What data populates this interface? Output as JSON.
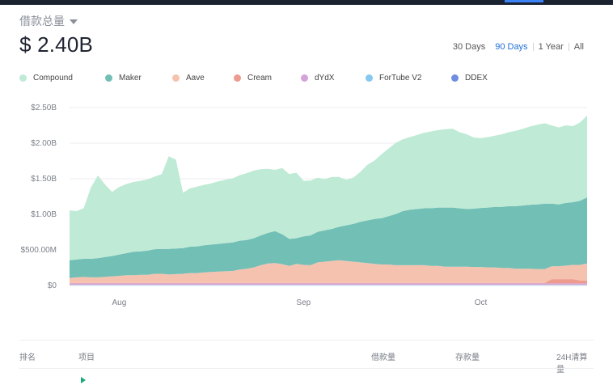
{
  "header": {
    "title": "借款总量",
    "total": "$ 2.40B"
  },
  "range_tabs": [
    {
      "label": "30 Days",
      "active": false
    },
    {
      "label": "90 Days",
      "active": true
    },
    {
      "label": "1 Year",
      "active": false
    },
    {
      "label": "All",
      "active": false
    }
  ],
  "legend": [
    {
      "name": "Compound",
      "color": "#bfead5"
    },
    {
      "name": "Maker",
      "color": "#72bfb6"
    },
    {
      "name": "Aave",
      "color": "#f6c2b0"
    },
    {
      "name": "Cream",
      "color": "#ec9b8e"
    },
    {
      "name": "dYdX",
      "color": "#d4a3d9"
    },
    {
      "name": "ForTube V2",
      "color": "#86c8ee"
    },
    {
      "name": "DDEX",
      "color": "#6f8ee0"
    }
  ],
  "chart_data": {
    "type": "area",
    "stacked": true,
    "ylim": [
      0,
      2500
    ],
    "y_unit": "M",
    "y_tick_labels": [
      "$0",
      "$500.00M",
      "$1.00B",
      "$1.50B",
      "$2.00B",
      "$2.50B"
    ],
    "y_tick_values": [
      0,
      500,
      1000,
      1500,
      2000,
      2500
    ],
    "x_tick_labels": [
      "Aug",
      "Sep",
      "Oct"
    ],
    "x_tick_index": [
      7,
      33,
      58
    ],
    "grid": true,
    "series": [
      {
        "name": "DDEX",
        "values": [
          5,
          5,
          5,
          5,
          5,
          5,
          5,
          5,
          5,
          5,
          5,
          5,
          5,
          5,
          5,
          5,
          5,
          5,
          5,
          5,
          5,
          5,
          5,
          5,
          5,
          5,
          5,
          5,
          5,
          5,
          5,
          5,
          5,
          5,
          5,
          5,
          5,
          5,
          5,
          5,
          5,
          5,
          5,
          5,
          5,
          5,
          5,
          5,
          5,
          5,
          5,
          5,
          5,
          5,
          5,
          5,
          5,
          5,
          5,
          5,
          5,
          5,
          5,
          5,
          5,
          5,
          5,
          5,
          5,
          5,
          5,
          5,
          5,
          5
        ]
      },
      {
        "name": "ForTube V2",
        "values": [
          5,
          5,
          5,
          5,
          5,
          5,
          5,
          5,
          5,
          5,
          5,
          5,
          5,
          5,
          5,
          5,
          5,
          5,
          5,
          5,
          5,
          5,
          5,
          5,
          5,
          5,
          5,
          5,
          5,
          5,
          5,
          5,
          5,
          5,
          5,
          5,
          5,
          5,
          5,
          5,
          5,
          5,
          5,
          5,
          5,
          5,
          5,
          5,
          5,
          5,
          5,
          5,
          5,
          5,
          5,
          5,
          5,
          5,
          5,
          5,
          5,
          5,
          5,
          5,
          5,
          5,
          5,
          5,
          5,
          5,
          5,
          5,
          5,
          5
        ]
      },
      {
        "name": "dYdX",
        "values": [
          20,
          20,
          20,
          20,
          20,
          20,
          20,
          20,
          20,
          20,
          20,
          20,
          20,
          20,
          20,
          20,
          20,
          20,
          20,
          20,
          20,
          20,
          20,
          20,
          20,
          20,
          20,
          20,
          20,
          20,
          20,
          20,
          20,
          20,
          20,
          20,
          20,
          20,
          20,
          20,
          20,
          20,
          20,
          20,
          20,
          20,
          20,
          20,
          20,
          20,
          20,
          20,
          20,
          20,
          20,
          20,
          20,
          20,
          20,
          20,
          20,
          20,
          20,
          20,
          20,
          20,
          20,
          20,
          20,
          20,
          20,
          20,
          20,
          20
        ]
      },
      {
        "name": "Cream",
        "values": [
          5,
          5,
          5,
          5,
          5,
          5,
          5,
          5,
          5,
          5,
          5,
          5,
          5,
          5,
          5,
          5,
          5,
          5,
          5,
          5,
          5,
          5,
          5,
          5,
          5,
          5,
          5,
          5,
          5,
          5,
          5,
          5,
          5,
          5,
          5,
          5,
          5,
          5,
          5,
          5,
          5,
          5,
          5,
          5,
          5,
          5,
          5,
          5,
          5,
          5,
          5,
          5,
          5,
          5,
          5,
          5,
          5,
          5,
          5,
          5,
          5,
          5,
          5,
          5,
          5,
          5,
          5,
          5,
          60,
          60,
          60,
          60,
          40,
          40
        ]
      },
      {
        "name": "Aave",
        "values": [
          70,
          80,
          85,
          80,
          80,
          85,
          95,
          100,
          110,
          110,
          115,
          115,
          130,
          130,
          120,
          125,
          130,
          140,
          140,
          150,
          155,
          160,
          165,
          170,
          190,
          200,
          220,
          250,
          275,
          280,
          265,
          240,
          270,
          255,
          250,
          290,
          300,
          310,
          320,
          310,
          300,
          290,
          280,
          270,
          260,
          260,
          250,
          250,
          250,
          250,
          250,
          240,
          240,
          230,
          230,
          230,
          230,
          225,
          225,
          220,
          220,
          210,
          210,
          200,
          200,
          200,
          195,
          195,
          180,
          180,
          190,
          200,
          220,
          240
        ]
      },
      {
        "name": "Maker",
        "values": [
          250,
          250,
          255,
          260,
          270,
          280,
          285,
          300,
          310,
          330,
          330,
          340,
          345,
          350,
          360,
          360,
          360,
          370,
          375,
          380,
          385,
          390,
          395,
          400,
          405,
          405,
          410,
          420,
          430,
          450,
          420,
          380,
          360,
          400,
          420,
          430,
          440,
          450,
          470,
          500,
          530,
          570,
          600,
          630,
          650,
          680,
          720,
          760,
          780,
          790,
          800,
          810,
          820,
          830,
          830,
          820,
          810,
          820,
          830,
          840,
          850,
          860,
          870,
          880,
          890,
          900,
          910,
          920,
          880,
          870,
          880,
          880,
          900,
          930
        ]
      },
      {
        "name": "Compound",
        "values": [
          700,
          680,
          710,
          1000,
          1160,
          1020,
          900,
          950,
          970,
          980,
          990,
          1000,
          1020,
          1050,
          1300,
          1250,
          780,
          820,
          840,
          850,
          860,
          880,
          890,
          900,
          920,
          940,
          950,
          930,
          900,
          860,
          930,
          910,
          920,
          780,
          770,
          760,
          720,
          730,
          700,
          640,
          650,
          700,
          780,
          820,
          900,
          950,
          1000,
          1010,
          1020,
          1040,
          1060,
          1080,
          1090,
          1100,
          1110,
          1070,
          1050,
          1000,
          980,
          990,
          1000,
          1020,
          1040,
          1060,
          1080,
          1100,
          1120,
          1130,
          1100,
          1080,
          1090,
          1070,
          1100,
          1150
        ]
      }
    ]
  },
  "table": {
    "headers": [
      "排名",
      "项目",
      "借款量",
      "存款量",
      "24H清算量"
    ]
  }
}
